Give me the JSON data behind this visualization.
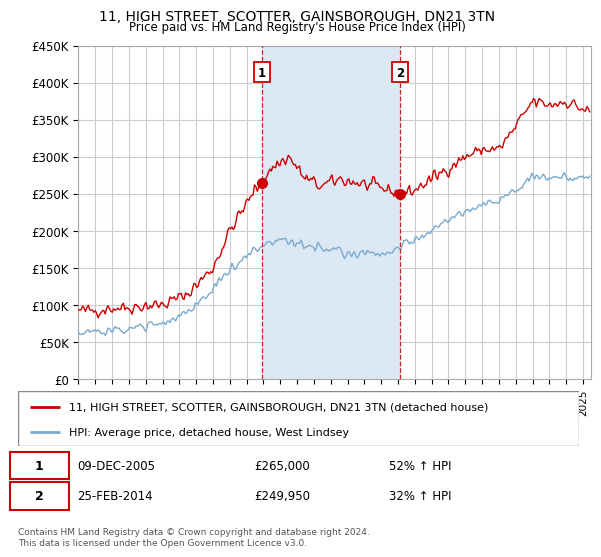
{
  "title": "11, HIGH STREET, SCOTTER, GAINSBOROUGH, DN21 3TN",
  "subtitle": "Price paid vs. HM Land Registry's House Price Index (HPI)",
  "background_color": "#ffffff",
  "plot_bg_color": "#ffffff",
  "grid_color": "#cccccc",
  "shade_color": "#dce9f5",
  "red_line_color": "#cc0000",
  "blue_line_color": "#7aaacf",
  "marker1_date_x": 2005.92,
  "marker2_date_x": 2014.12,
  "marker1_price": 265000,
  "marker2_price": 249950,
  "xmin": 1995,
  "xmax": 2025.5,
  "ymin": 0,
  "ymax": 450000,
  "yticks": [
    0,
    50000,
    100000,
    150000,
    200000,
    250000,
    300000,
    350000,
    400000,
    450000
  ],
  "ytick_labels": [
    "£0",
    "£50K",
    "£100K",
    "£150K",
    "£200K",
    "£250K",
    "£300K",
    "£350K",
    "£400K",
    "£450K"
  ],
  "xtick_years": [
    1995,
    1996,
    1997,
    1998,
    1999,
    2000,
    2001,
    2002,
    2003,
    2004,
    2005,
    2006,
    2007,
    2008,
    2009,
    2010,
    2011,
    2012,
    2013,
    2014,
    2015,
    2016,
    2017,
    2018,
    2019,
    2020,
    2021,
    2022,
    2023,
    2024,
    2025
  ],
  "legend1_label": "11, HIGH STREET, SCOTTER, GAINSBOROUGH, DN21 3TN (detached house)",
  "legend2_label": "HPI: Average price, detached house, West Lindsey",
  "annotation1_date": "09-DEC-2005",
  "annotation1_price": "£265,000",
  "annotation1_pct": "52% ↑ HPI",
  "annotation2_date": "25-FEB-2014",
  "annotation2_price": "£249,950",
  "annotation2_pct": "32% ↑ HPI",
  "footer": "Contains HM Land Registry data © Crown copyright and database right 2024.\nThis data is licensed under the Open Government Licence v3.0."
}
